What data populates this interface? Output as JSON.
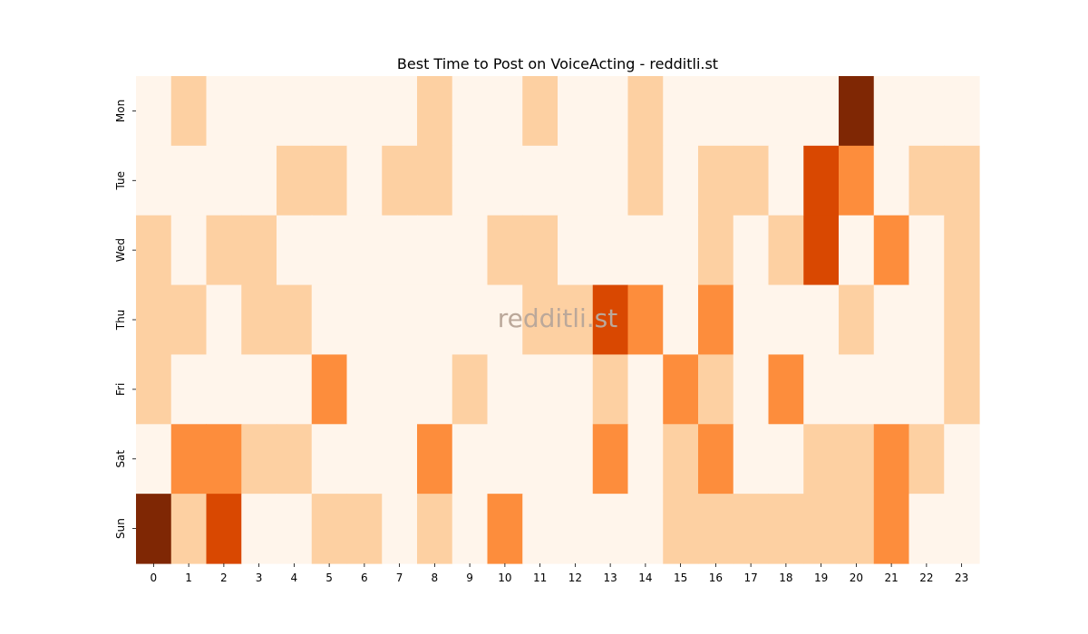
{
  "chart_data": {
    "type": "heatmap",
    "title": "Best Time to Post on VoiceActing - redditli.st",
    "watermark": "redditli.st",
    "xlabel": "",
    "ylabel": "",
    "x_categories": [
      "0",
      "1",
      "2",
      "3",
      "4",
      "5",
      "6",
      "7",
      "8",
      "9",
      "10",
      "11",
      "12",
      "13",
      "14",
      "15",
      "16",
      "17",
      "18",
      "19",
      "20",
      "21",
      "22",
      "23"
    ],
    "y_categories": [
      "Mon",
      "Tue",
      "Wed",
      "Thu",
      "Fri",
      "Sat",
      "Sun"
    ],
    "colorscale": "Oranges",
    "legend": "none",
    "values": [
      [
        0,
        1,
        0,
        0,
        0,
        0,
        0,
        0,
        1,
        0,
        0,
        1,
        0,
        0,
        1,
        0,
        0,
        0,
        0,
        0,
        4,
        0,
        0,
        0
      ],
      [
        0,
        0,
        0,
        0,
        1,
        1,
        0,
        1,
        1,
        0,
        0,
        0,
        0,
        0,
        1,
        0,
        1,
        1,
        0,
        3,
        2,
        0,
        1,
        1
      ],
      [
        1,
        0,
        1,
        1,
        0,
        0,
        0,
        0,
        0,
        0,
        1,
        1,
        0,
        0,
        0,
        0,
        1,
        0,
        1,
        3,
        0,
        2,
        0,
        1
      ],
      [
        1,
        1,
        0,
        1,
        1,
        0,
        0,
        0,
        0,
        0,
        0,
        1,
        1,
        3,
        2,
        0,
        2,
        0,
        0,
        0,
        1,
        0,
        0,
        1
      ],
      [
        1,
        0,
        0,
        0,
        0,
        2,
        0,
        0,
        0,
        1,
        0,
        0,
        0,
        1,
        0,
        2,
        1,
        0,
        2,
        0,
        0,
        0,
        0,
        1
      ],
      [
        0,
        2,
        2,
        1,
        1,
        0,
        0,
        0,
        2,
        0,
        0,
        0,
        0,
        2,
        0,
        1,
        2,
        0,
        0,
        1,
        1,
        2,
        1,
        0
      ],
      [
        4,
        1,
        3,
        0,
        0,
        1,
        1,
        0,
        1,
        0,
        2,
        0,
        0,
        0,
        0,
        1,
        1,
        1,
        1,
        1,
        1,
        2,
        0,
        0
      ]
    ]
  },
  "colors": [
    "#fff5eb",
    "#fdd0a2",
    "#fd8d3c",
    "#d94801",
    "#7f2704"
  ]
}
